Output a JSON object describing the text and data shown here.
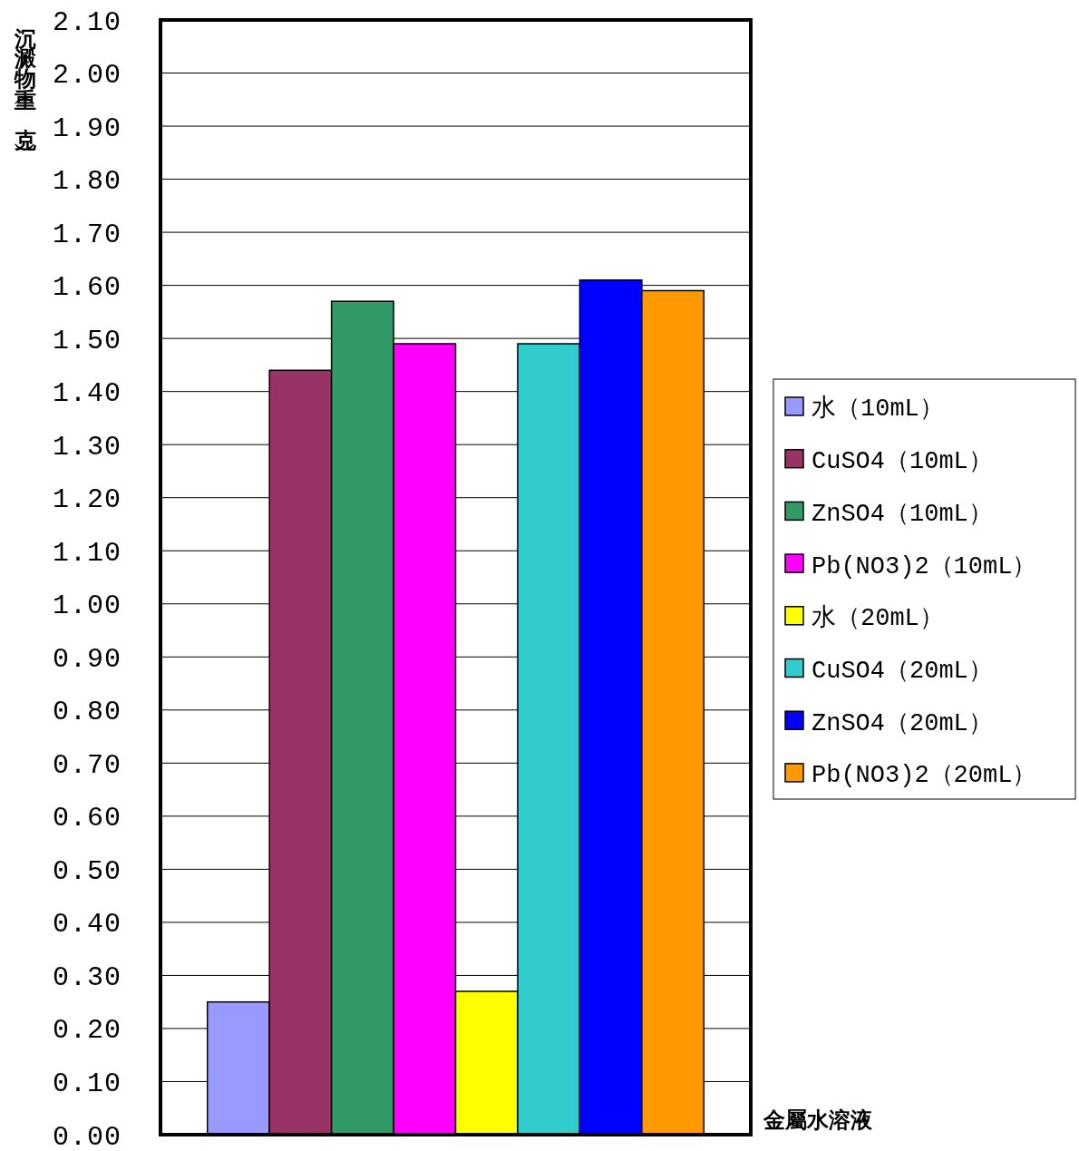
{
  "chart_data": {
    "type": "bar",
    "ylabel": "沉澱物重（克）",
    "xlabel": "金屬水溶液",
    "categories": [
      null
    ],
    "series": [
      {
        "name": "水（10mL）",
        "color": "#9999ff",
        "values": [
          0.25
        ]
      },
      {
        "name": "CuSO4（10mL）",
        "color": "#993366",
        "values": [
          1.44
        ]
      },
      {
        "name": "ZnSO4（10mL）",
        "color": "#339966",
        "values": [
          1.57
        ]
      },
      {
        "name": "Pb(NO3)2（10mL）",
        "color": "#ff00ff",
        "values": [
          1.49
        ]
      },
      {
        "name": "水（20mL）",
        "color": "#ffff00",
        "values": [
          0.27
        ]
      },
      {
        "name": "CuSO4（20mL）",
        "color": "#33cccc",
        "values": [
          1.49
        ]
      },
      {
        "name": "ZnSO4（20mL）",
        "color": "#0000ff",
        "values": [
          1.61
        ]
      },
      {
        "name": "Pb(NO3)2（20mL）",
        "color": "#ff9900",
        "values": [
          1.59
        ]
      }
    ],
    "ylim": [
      0,
      2.1
    ],
    "yticks": [
      {
        "value": 0,
        "label": "0.00"
      },
      {
        "value": 0.1,
        "label": "0.10"
      },
      {
        "value": 0.2,
        "label": "0.20"
      },
      {
        "value": 0.3,
        "label": "0.30"
      },
      {
        "value": 0.4,
        "label": "0.40"
      },
      {
        "value": 0.5,
        "label": "0.50"
      },
      {
        "value": 0.6,
        "label": "0.60"
      },
      {
        "value": 0.7,
        "label": "0.70"
      },
      {
        "value": 0.8,
        "label": "0.80"
      },
      {
        "value": 0.9,
        "label": "0.90"
      },
      {
        "value": 1,
        "label": "1.00"
      },
      {
        "value": 1.1,
        "label": "1.10"
      },
      {
        "value": 1.2,
        "label": "1.20"
      },
      {
        "value": 1.3,
        "label": "1.30"
      },
      {
        "value": 1.4,
        "label": "1.40"
      },
      {
        "value": 1.5,
        "label": "1.50"
      },
      {
        "value": 1.6,
        "label": "1.60"
      },
      {
        "value": 1.7,
        "label": "1.70"
      },
      {
        "value": 1.8,
        "label": "1.80"
      },
      {
        "value": 1.9,
        "label": "1.90"
      },
      {
        "value": 2,
        "label": "2.00"
      },
      {
        "value": 2.1,
        "label": "2.10"
      }
    ],
    "grid": "y",
    "legend": "right"
  }
}
